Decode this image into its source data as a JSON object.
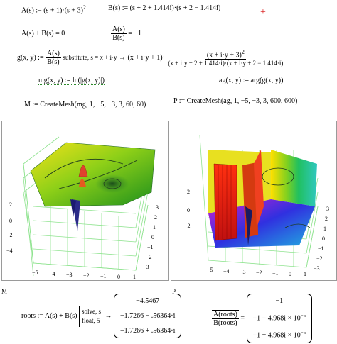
{
  "eq": {
    "A_def": "A(s) := (s + 1)·(s + 3)",
    "A_exp": "2",
    "B_def": "B(s) := (s + 2 + 1.414i)·(s + 2 − 1.414i)",
    "marker": "+",
    "sum_eq": "A(s) + B(s) = 0",
    "ratio_num": "A(s)",
    "ratio_den": "B(s)",
    "ratio_val": "= −1",
    "g_lhs": "g(x, y) :=",
    "g_num": "A(s)",
    "g_den": "B(s)",
    "g_kw": "substitute, s = x + i·y",
    "g_arrow": "→ (x + i·y + 1)·",
    "g_rnum": "(x + i·y + 3)",
    "g_rnum_exp": "2",
    "g_rden": "(x + i·y + 2 + 1.414·i)·(x + i·y + 2 − 1.414·i)",
    "mg_def": "mg(x, y) := ln(|g(x, y)|)",
    "ag_def": "ag(x, y) := arg(g(x, y))",
    "M_def": "M := CreateMesh(mg, 1, −5, −3, 3, 60, 60)",
    "P_def": "P := CreateMesh(ag, 1, −5, −3, 3, 600, 600)",
    "label_M": "M",
    "label_P": "P",
    "roots_lhs": "roots := A(s) + B(s)",
    "solve_kw": "solve, s",
    "float_kw": "float, 5",
    "roots_vals": [
      "−4.5467",
      "−1.7266 − .56364·i",
      "−1.7266 + .56364·i"
    ],
    "ratio2_num": "A(roots)",
    "ratio2_den": "B(roots)",
    "ratio2_vals": [
      "−1",
      "−1 − 4.968i × 10",
      "−1 + 4.968i × 10"
    ],
    "ratio2_exp": "−5"
  },
  "plot_left": {
    "z_ticks": [
      "2",
      "0",
      "−2",
      "−4"
    ],
    "x_ticks": [
      "−5",
      "−4",
      "−3",
      "−2",
      "−1",
      "0",
      "1"
    ],
    "y_ticks": [
      "3",
      "2",
      "1",
      "0",
      "−1",
      "−2",
      "−3"
    ]
  },
  "plot_right": {
    "z_ticks": [
      "2",
      "0",
      "−2"
    ],
    "x_ticks": [
      "−5",
      "−4",
      "−3",
      "−2",
      "−1",
      "0",
      "1"
    ],
    "y_ticks": [
      "3",
      "2",
      "1",
      "0",
      "−1",
      "−2",
      "−3"
    ]
  }
}
